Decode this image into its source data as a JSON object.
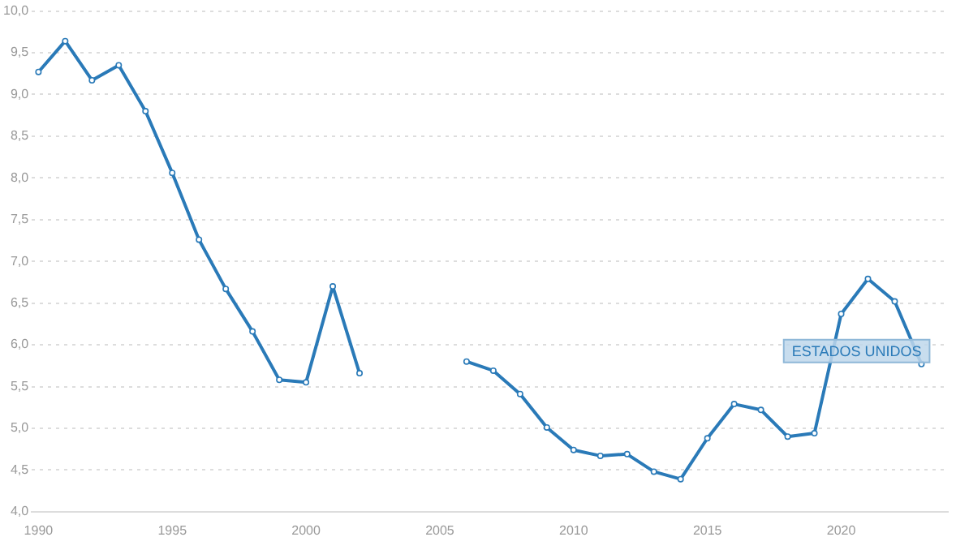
{
  "chart_data": {
    "type": "line",
    "x": [
      1990,
      1991,
      1992,
      1993,
      1994,
      1995,
      1996,
      1997,
      1998,
      1999,
      2000,
      2001,
      2002,
      2003,
      2004,
      2005,
      2006,
      2007,
      2008,
      2009,
      2010,
      2011,
      2012,
      2013,
      2014,
      2015,
      2016,
      2017,
      2018,
      2019,
      2020,
      2021,
      2022,
      2023
    ],
    "series": [
      {
        "name": "ESTADOS UNIDOS",
        "color": "#2a7ab8",
        "values": [
          9.27,
          9.64,
          9.17,
          9.35,
          8.8,
          8.06,
          7.26,
          6.67,
          6.16,
          5.58,
          5.55,
          6.7,
          5.66,
          null,
          null,
          null,
          5.8,
          5.69,
          5.41,
          5.01,
          4.74,
          4.67,
          4.69,
          4.48,
          4.39,
          4.88,
          5.29,
          5.22,
          4.9,
          4.94,
          6.37,
          6.79,
          6.52,
          5.77
        ]
      }
    ],
    "xlim": [
      1989.75,
      2024
    ],
    "xticks": [
      1990,
      1995,
      2000,
      2005,
      2010,
      2015,
      2020
    ],
    "ylim": [
      4,
      10
    ],
    "yticks": [
      {
        "value": 4,
        "label": "4,0"
      },
      {
        "value": 4.5,
        "label": "4,5"
      },
      {
        "value": 5,
        "label": "5,0"
      },
      {
        "value": 5.5,
        "label": "5,5"
      },
      {
        "value": 6,
        "label": "6,0"
      },
      {
        "value": 6.5,
        "label": "6,5"
      },
      {
        "value": 7,
        "label": "7,0"
      },
      {
        "value": 7.5,
        "label": "7,5"
      },
      {
        "value": 8,
        "label": "8,0"
      },
      {
        "value": 8.5,
        "label": "8,5"
      },
      {
        "value": 9,
        "label": "9,0"
      },
      {
        "value": 9.5,
        "label": "9,5"
      },
      {
        "value": 10,
        "label": "10,0"
      }
    ],
    "grid": "y",
    "marker": "circle",
    "line_style": "solid",
    "legend": false
  }
}
